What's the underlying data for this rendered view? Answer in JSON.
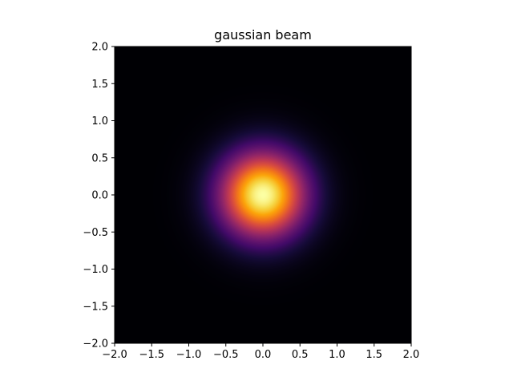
{
  "chart_data": {
    "type": "heatmap",
    "title": "gaussian beam",
    "xlabel": "",
    "ylabel": "",
    "colormap": "inferno",
    "function": "exp(-(x^2 + y^2) / (2 * sigma^2))",
    "sigma": 0.4,
    "center": [
      0.0,
      0.0
    ],
    "peak_value": 1.0,
    "xlim": [
      -2.0,
      2.0
    ],
    "ylim": [
      -2.0,
      2.0
    ],
    "xticks": [
      -2.0,
      -1.5,
      -1.0,
      -0.5,
      0.0,
      0.5,
      1.0,
      1.5,
      2.0
    ],
    "yticks": [
      -2.0,
      -1.5,
      -1.0,
      -0.5,
      0.0,
      0.5,
      1.0,
      1.5,
      2.0
    ],
    "xtick_labels": [
      "−2.0",
      "−1.5",
      "−1.0",
      "−0.5",
      "0.0",
      "0.5",
      "1.0",
      "1.5",
      "2.0"
    ],
    "ytick_labels": [
      "−2.0",
      "−1.5",
      "−1.0",
      "−0.5",
      "0.0",
      "0.5",
      "1.0",
      "1.5",
      "2.0"
    ],
    "grid": false
  }
}
